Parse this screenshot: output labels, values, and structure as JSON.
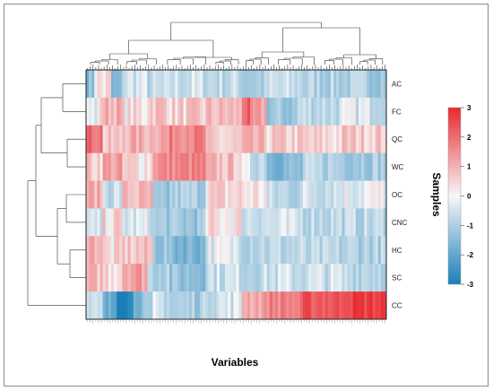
{
  "chart_data": {
    "type": "heatmap",
    "title": "",
    "xlabel": "Variables",
    "ylabel": "Samples",
    "rows": [
      "AC",
      "FC",
      "QC",
      "WC",
      "OC",
      "CNC",
      "HC",
      "SC",
      "CC"
    ],
    "column_count": 108,
    "row_profiles": [
      {
        "row": "AC",
        "segments": [
          [
            0.03,
            -1.2
          ],
          [
            0.08,
            0.2
          ],
          [
            0.12,
            -1.5
          ],
          [
            0.2,
            -0.3
          ],
          [
            0.28,
            -0.6
          ],
          [
            0.4,
            -0.4
          ],
          [
            0.52,
            -0.5
          ],
          [
            0.6,
            -0.8
          ],
          [
            0.72,
            -0.5
          ],
          [
            0.85,
            -0.7
          ],
          [
            1.0,
            -0.8
          ]
        ]
      },
      {
        "row": "FC",
        "segments": [
          [
            0.05,
            -0.2
          ],
          [
            0.12,
            0.8
          ],
          [
            0.2,
            0.2
          ],
          [
            0.28,
            0.6
          ],
          [
            0.4,
            0.4
          ],
          [
            0.52,
            0.6
          ],
          [
            0.55,
            1.9
          ],
          [
            0.6,
            0.9
          ],
          [
            0.7,
            -1.0
          ],
          [
            0.85,
            -0.5
          ],
          [
            1.0,
            -0.3
          ]
        ]
      },
      {
        "row": "QC",
        "segments": [
          [
            0.06,
            1.8
          ],
          [
            0.12,
            0.4
          ],
          [
            0.22,
            0.8
          ],
          [
            0.28,
            1.0
          ],
          [
            0.4,
            1.5
          ],
          [
            0.52,
            0.3
          ],
          [
            0.6,
            0.6
          ],
          [
            0.72,
            0.4
          ],
          [
            0.85,
            0.3
          ],
          [
            1.0,
            0.5
          ]
        ]
      },
      {
        "row": "WC",
        "segments": [
          [
            0.06,
            0.5
          ],
          [
            0.12,
            1.0
          ],
          [
            0.22,
            0.3
          ],
          [
            0.28,
            1.3
          ],
          [
            0.4,
            1.4
          ],
          [
            0.52,
            0.6
          ],
          [
            0.6,
            -0.4
          ],
          [
            0.72,
            -1.3
          ],
          [
            0.85,
            -0.7
          ],
          [
            1.0,
            -0.8
          ]
        ]
      },
      {
        "row": "OC",
        "segments": [
          [
            0.06,
            0.8
          ],
          [
            0.12,
            -0.4
          ],
          [
            0.22,
            0.6
          ],
          [
            0.28,
            -1.2
          ],
          [
            0.4,
            -0.8
          ],
          [
            0.52,
            0.3
          ],
          [
            0.6,
            0.2
          ],
          [
            0.72,
            -0.6
          ],
          [
            0.85,
            -0.3
          ],
          [
            1.0,
            -0.1
          ]
        ]
      },
      {
        "row": "CNC",
        "segments": [
          [
            0.06,
            -0.5
          ],
          [
            0.12,
            0.3
          ],
          [
            0.22,
            -0.3
          ],
          [
            0.28,
            -0.9
          ],
          [
            0.4,
            -1.0
          ],
          [
            0.52,
            0.2
          ],
          [
            0.6,
            -0.3
          ],
          [
            0.72,
            -0.4
          ],
          [
            0.85,
            -0.5
          ],
          [
            1.0,
            -0.6
          ]
        ]
      },
      {
        "row": "HC",
        "segments": [
          [
            0.06,
            0.9
          ],
          [
            0.12,
            0.2
          ],
          [
            0.22,
            0.5
          ],
          [
            0.28,
            -1.0
          ],
          [
            0.4,
            -1.4
          ],
          [
            0.52,
            -0.2
          ],
          [
            0.6,
            -0.5
          ],
          [
            0.72,
            -0.6
          ],
          [
            0.85,
            -0.7
          ],
          [
            1.0,
            -0.7
          ]
        ]
      },
      {
        "row": "SC",
        "segments": [
          [
            0.06,
            0.6
          ],
          [
            0.12,
            0.4
          ],
          [
            0.2,
            1.1
          ],
          [
            0.28,
            -0.6
          ],
          [
            0.4,
            -1.1
          ],
          [
            0.52,
            -0.4
          ],
          [
            0.6,
            -0.5
          ],
          [
            0.72,
            -0.4
          ],
          [
            0.85,
            -0.4
          ],
          [
            1.0,
            -0.5
          ]
        ]
      },
      {
        "row": "CC",
        "segments": [
          [
            0.06,
            -0.6
          ],
          [
            0.1,
            -1.8
          ],
          [
            0.16,
            -2.8
          ],
          [
            0.22,
            -1.2
          ],
          [
            0.28,
            -0.4
          ],
          [
            0.4,
            -0.8
          ],
          [
            0.52,
            -0.3
          ],
          [
            0.6,
            1.0
          ],
          [
            0.72,
            1.5
          ],
          [
            0.85,
            2.2
          ],
          [
            1.0,
            2.6
          ]
        ]
      }
    ],
    "colorbar": {
      "range": [
        -3,
        3
      ],
      "ticks": [
        "3",
        "2",
        "1",
        "0",
        "-1",
        "-2",
        "-3"
      ],
      "colors": {
        "low": "#1a7fb8",
        "mid": "#f7f7f7",
        "high": "#e8282e"
      }
    }
  }
}
